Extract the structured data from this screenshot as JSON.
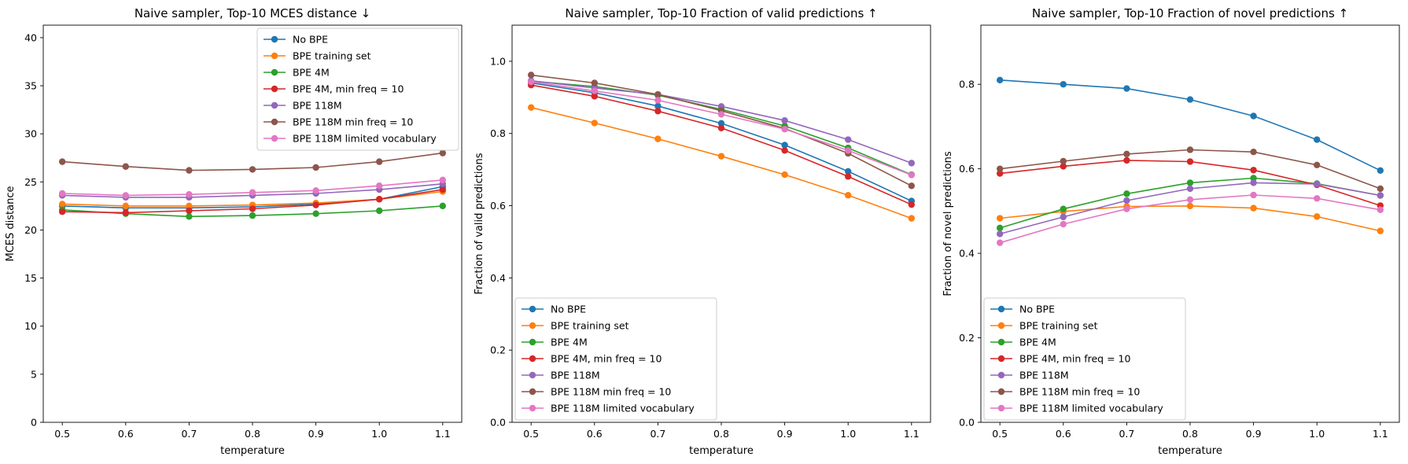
{
  "colors": [
    "#1f77b4",
    "#ff7f0e",
    "#2ca02c",
    "#d62728",
    "#9467bd",
    "#8c564b",
    "#e377c2"
  ],
  "chart_data": [
    {
      "type": "line",
      "title": "Naive sampler, Top-10 MCES distance ↓",
      "xlabel": "temperature",
      "ylabel": "MCES distance",
      "xlim": [
        0.47,
        1.13
      ],
      "ylim": [
        0,
        41.3
      ],
      "yticks": [
        0,
        5,
        10,
        15,
        20,
        25,
        30,
        35,
        40
      ],
      "ytick_labels": [
        "0",
        "5",
        "10",
        "15",
        "20",
        "25",
        "30",
        "35",
        "40"
      ],
      "legend_position": "upper right",
      "x": [
        0.5,
        0.6,
        0.7,
        0.8,
        0.9,
        1.0,
        1.1
      ],
      "xtick_labels": [
        "0.5",
        "0.6",
        "0.7",
        "0.8",
        "0.9",
        "1.0",
        "1.1"
      ],
      "series": [
        {
          "name": "No BPE",
          "values": [
            22.5,
            22.3,
            22.3,
            22.4,
            22.7,
            23.2,
            24.5
          ]
        },
        {
          "name": "BPE training set",
          "values": [
            22.7,
            22.5,
            22.5,
            22.6,
            22.8,
            23.2,
            24.0
          ]
        },
        {
          "name": "BPE 4M",
          "values": [
            22.1,
            21.7,
            21.4,
            21.5,
            21.7,
            22.0,
            22.5
          ]
        },
        {
          "name": "BPE 4M, min freq = 10",
          "values": [
            21.9,
            21.8,
            22.0,
            22.2,
            22.6,
            23.2,
            24.2
          ]
        },
        {
          "name": "BPE 118M",
          "values": [
            23.6,
            23.4,
            23.4,
            23.6,
            23.8,
            24.2,
            24.8
          ]
        },
        {
          "name": "BPE 118M min freq = 10",
          "values": [
            27.1,
            26.6,
            26.2,
            26.3,
            26.5,
            27.1,
            28.0
          ]
        },
        {
          "name": "BPE 118M limited vocabulary",
          "values": [
            23.8,
            23.6,
            23.7,
            23.9,
            24.1,
            24.6,
            25.2
          ]
        }
      ]
    },
    {
      "type": "line",
      "title": "Naive sampler, Top-10 Fraction of valid predictions ↑",
      "xlabel": "temperature",
      "ylabel": "Fraction of valid predictions",
      "xlim": [
        0.47,
        1.13
      ],
      "ylim": [
        0,
        1.1
      ],
      "yticks": [
        0,
        0.2,
        0.4,
        0.6,
        0.8,
        1.0
      ],
      "ytick_labels": [
        "0.0",
        "0.2",
        "0.4",
        "0.6",
        "0.8",
        "1.0"
      ],
      "legend_position": "lower left",
      "x": [
        0.5,
        0.6,
        0.7,
        0.8,
        0.9,
        1.0,
        1.1
      ],
      "xtick_labels": [
        "0.5",
        "0.6",
        "0.7",
        "0.8",
        "0.9",
        "1.0",
        "1.1"
      ],
      "series": [
        {
          "name": "No BPE",
          "values": [
            0.94,
            0.913,
            0.876,
            0.828,
            0.768,
            0.695,
            0.613
          ]
        },
        {
          "name": "BPE training set",
          "values": [
            0.872,
            0.829,
            0.785,
            0.737,
            0.686,
            0.629,
            0.565
          ]
        },
        {
          "name": "BPE 4M",
          "values": [
            0.945,
            0.93,
            0.906,
            0.867,
            0.821,
            0.76,
            0.686
          ]
        },
        {
          "name": "BPE 4M, min freq = 10",
          "values": [
            0.934,
            0.903,
            0.862,
            0.815,
            0.753,
            0.681,
            0.603
          ]
        },
        {
          "name": "BPE 118M",
          "values": [
            0.946,
            0.926,
            0.908,
            0.875,
            0.836,
            0.783,
            0.718
          ]
        },
        {
          "name": "BPE 118M min freq = 10",
          "values": [
            0.962,
            0.94,
            0.908,
            0.863,
            0.814,
            0.745,
            0.655
          ]
        },
        {
          "name": "BPE 118M limited vocabulary",
          "values": [
            0.943,
            0.918,
            0.892,
            0.853,
            0.812,
            0.753,
            0.685
          ]
        }
      ]
    },
    {
      "type": "line",
      "title": "Naive sampler, Top-10 Fraction of novel predictions ↑",
      "xlabel": "temperature",
      "ylabel": "Fraction of novel predictions",
      "xlim": [
        0.47,
        1.13
      ],
      "ylim": [
        0,
        0.94
      ],
      "yticks": [
        0,
        0.2,
        0.4,
        0.6,
        0.8
      ],
      "ytick_labels": [
        "0.0",
        "0.2",
        "0.4",
        "0.6",
        "0.8"
      ],
      "legend_position": "lower left",
      "x": [
        0.5,
        0.6,
        0.7,
        0.8,
        0.9,
        1.0,
        1.1
      ],
      "xtick_labels": [
        "0.5",
        "0.6",
        "0.7",
        "0.8",
        "0.9",
        "1.0",
        "1.1"
      ],
      "series": [
        {
          "name": "No BPE",
          "values": [
            0.81,
            0.8,
            0.79,
            0.764,
            0.725,
            0.669,
            0.596
          ]
        },
        {
          "name": "BPE training set",
          "values": [
            0.483,
            0.499,
            0.511,
            0.512,
            0.507,
            0.487,
            0.453
          ]
        },
        {
          "name": "BPE 4M",
          "values": [
            0.46,
            0.505,
            0.541,
            0.567,
            0.578,
            0.565,
            0.537
          ]
        },
        {
          "name": "BPE 4M, min freq = 10",
          "values": [
            0.589,
            0.606,
            0.62,
            0.617,
            0.597,
            0.562,
            0.513
          ]
        },
        {
          "name": "BPE 118M",
          "values": [
            0.446,
            0.486,
            0.525,
            0.553,
            0.567,
            0.564,
            0.537
          ]
        },
        {
          "name": "BPE 118M min freq = 10",
          "values": [
            0.6,
            0.618,
            0.635,
            0.645,
            0.64,
            0.609,
            0.553
          ]
        },
        {
          "name": "BPE 118M limited vocabulary",
          "values": [
            0.425,
            0.469,
            0.505,
            0.527,
            0.538,
            0.53,
            0.503
          ]
        }
      ]
    }
  ]
}
